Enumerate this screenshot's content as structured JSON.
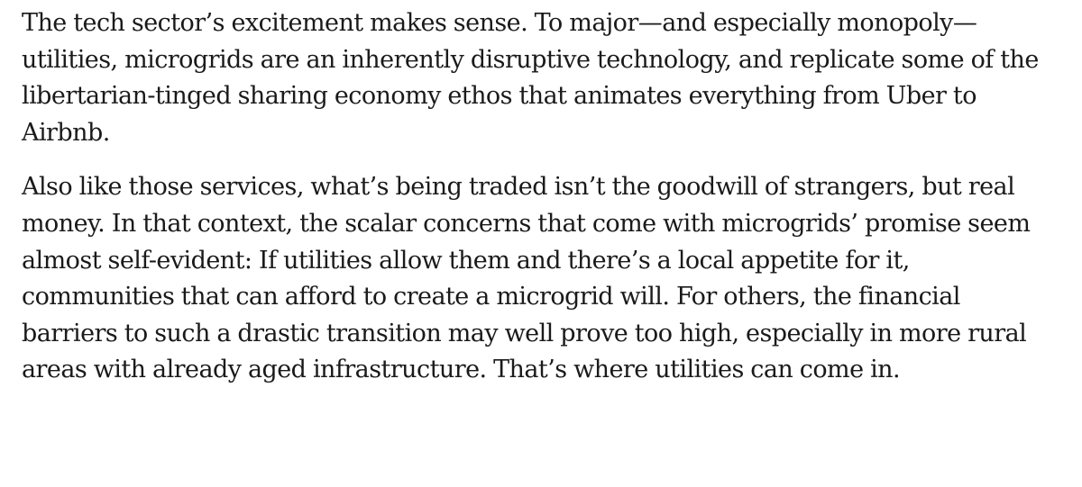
{
  "article": {
    "paragraphs": [
      {
        "lines": [
          "The tech sector’s excitement makes sense. To major—and especially monopoly—",
          "utilities, microgrids are an inherently disruptive technology, and replicate some of the",
          "libertarian-tinged sharing economy ethos that animates everything from Uber to",
          "Airbnb."
        ]
      },
      {
        "lines": [
          "Also like those services, what’s being traded isn’t the goodwill of strangers, but real",
          "money. In that context, the scalar concerns that come with microgrids’ promise seem",
          "almost self-evident: If utilities allow them and there’s a local appetite for it,",
          "communities that can afford to create a microgrid will. For others, the financial",
          "barriers to such a drastic transition may well prove too high, especially in more rural",
          "areas with already aged infrastructure. That’s where utilities can come in."
        ]
      }
    ]
  }
}
